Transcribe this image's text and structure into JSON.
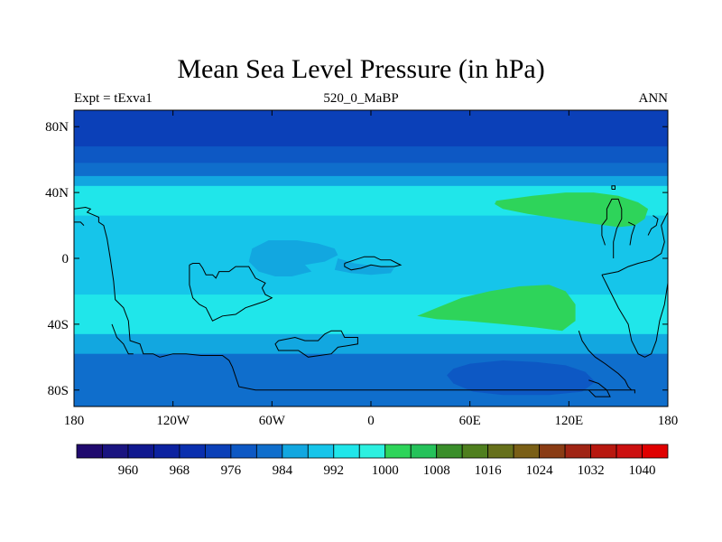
{
  "chart_data": {
    "type": "heatmap",
    "title": "Mean Sea Level Pressure (in hPa)",
    "subtitle_left": "Expt = tExva1",
    "subtitle_center": "520_0_MaBP",
    "subtitle_right": "ANN",
    "xlim": [
      -180,
      180
    ],
    "ylim": [
      -90,
      90
    ],
    "x_ticks": [
      {
        "value": -180,
        "label": "180"
      },
      {
        "value": -120,
        "label": "120W"
      },
      {
        "value": -60,
        "label": "60W"
      },
      {
        "value": 0,
        "label": "0"
      },
      {
        "value": 60,
        "label": "60E"
      },
      {
        "value": 120,
        "label": "120E"
      },
      {
        "value": 180,
        "label": "180"
      }
    ],
    "y_ticks": [
      {
        "value": 80,
        "label": "80N"
      },
      {
        "value": 40,
        "label": "40N"
      },
      {
        "value": 0,
        "label": "0"
      },
      {
        "value": -40,
        "label": "40S"
      },
      {
        "value": -80,
        "label": "80S"
      }
    ],
    "colorbar": {
      "levels": [
        956,
        960,
        964,
        968,
        972,
        976,
        980,
        984,
        988,
        992,
        996,
        1000,
        1004,
        1008,
        1012,
        1016,
        1020,
        1024,
        1028,
        1032,
        1036,
        1040,
        1044
      ],
      "colors": [
        "#200a6e",
        "#1a1480",
        "#10188f",
        "#0c22a0",
        "#0a2fae",
        "#0b40b8",
        "#0d58c4",
        "#0f6ecc",
        "#12a7e0",
        "#16c5ea",
        "#20e6ea",
        "#2cf0e0",
        "#2ed45a",
        "#25c25a",
        "#3a8e2a",
        "#4f7f1e",
        "#66701b",
        "#7a5f16",
        "#8a3c14",
        "#a02414",
        "#b8180f",
        "#cc1010",
        "#e00000"
      ],
      "labels": [
        "960",
        "968",
        "976",
        "984",
        "992",
        "1000",
        "1008",
        "1016",
        "1024",
        "1032",
        "1040"
      ],
      "label_values": [
        960,
        968,
        976,
        984,
        992,
        1000,
        1008,
        1016,
        1024,
        1032,
        1040
      ]
    },
    "zonal_bands": [
      {
        "lat_max": 90,
        "lat_min": 68,
        "value": 976
      },
      {
        "lat_max": 68,
        "lat_min": 58,
        "value": 980
      },
      {
        "lat_max": 58,
        "lat_min": 50,
        "value": 984
      },
      {
        "lat_max": 50,
        "lat_min": 44,
        "value": 988
      },
      {
        "lat_max": 44,
        "lat_min": 26,
        "value": 996
      },
      {
        "lat_max": 26,
        "lat_min": -22,
        "value": 992
      },
      {
        "lat_max": -22,
        "lat_min": -46,
        "value": 996
      },
      {
        "lat_max": -46,
        "lat_min": -58,
        "value": 988
      },
      {
        "lat_max": -58,
        "lat_min": -90,
        "value": 984
      }
    ],
    "regions": [
      {
        "name": "north-pacific-high",
        "value": 1004,
        "path": [
          [
            76,
            35
          ],
          [
            98,
            38
          ],
          [
            118,
            40
          ],
          [
            135,
            40
          ],
          [
            150,
            38
          ],
          [
            162,
            34
          ],
          [
            168,
            30
          ],
          [
            166,
            24
          ],
          [
            160,
            20
          ],
          [
            150,
            19
          ],
          [
            135,
            21
          ],
          [
            115,
            24
          ],
          [
            95,
            27
          ],
          [
            80,
            30
          ],
          [
            75,
            33
          ]
        ]
      },
      {
        "name": "south-indian-high",
        "value": 1004,
        "path": [
          [
            28,
            -35
          ],
          [
            40,
            -30
          ],
          [
            55,
            -24
          ],
          [
            72,
            -20
          ],
          [
            90,
            -17
          ],
          [
            108,
            -16
          ],
          [
            118,
            -20
          ],
          [
            124,
            -28
          ],
          [
            124,
            -38
          ],
          [
            116,
            -44
          ],
          [
            100,
            -42
          ],
          [
            80,
            -40
          ],
          [
            58,
            -38
          ],
          [
            40,
            -37
          ]
        ]
      },
      {
        "name": "tropical-low-west",
        "value": 988,
        "path": [
          [
            -72,
            6
          ],
          [
            -62,
            11
          ],
          [
            -45,
            11
          ],
          [
            -32,
            9
          ],
          [
            -22,
            6
          ],
          [
            -20,
            2
          ],
          [
            -28,
            -2
          ],
          [
            -40,
            -4
          ],
          [
            -36,
            -8
          ],
          [
            -48,
            -11
          ],
          [
            -58,
            -11
          ],
          [
            -68,
            -8
          ],
          [
            -74,
            -2
          ]
        ]
      },
      {
        "name": "tropical-low-east",
        "value": 988,
        "path": [
          [
            -20,
            0
          ],
          [
            -10,
            -3
          ],
          [
            5,
            -5
          ],
          [
            14,
            -6
          ],
          [
            12,
            -9
          ],
          [
            0,
            -10
          ],
          [
            -12,
            -9
          ],
          [
            -22,
            -7
          ]
        ]
      },
      {
        "name": "southern-ocean-low",
        "value": 980,
        "path": [
          [
            50,
            -67
          ],
          [
            60,
            -64
          ],
          [
            80,
            -62
          ],
          [
            100,
            -63
          ],
          [
            118,
            -65
          ],
          [
            130,
            -69
          ],
          [
            136,
            -75
          ],
          [
            128,
            -81
          ],
          [
            108,
            -83
          ],
          [
            80,
            -83
          ],
          [
            62,
            -81
          ],
          [
            50,
            -76
          ],
          [
            46,
            -71
          ]
        ]
      }
    ],
    "coastlines": [
      [
        [
          -180,
          30
        ],
        [
          -173,
          31
        ],
        [
          -170,
          30
        ],
        [
          -172,
          28
        ],
        [
          -165,
          25
        ],
        [
          -165,
          22
        ],
        [
          -162,
          20
        ],
        [
          -160,
          12
        ],
        [
          -158,
          0
        ],
        [
          -156,
          -14
        ],
        [
          -155,
          -25
        ],
        [
          -150,
          -30
        ],
        [
          -147,
          -38
        ],
        [
          -146,
          -50
        ],
        [
          -140,
          -52
        ],
        [
          -138,
          -58
        ],
        [
          -132,
          -58
        ],
        [
          -128,
          -60
        ],
        [
          -120,
          -58
        ],
        [
          -112,
          -58
        ],
        [
          -103,
          -59
        ],
        [
          -90,
          -59
        ],
        [
          -86,
          -62
        ],
        [
          -84,
          -66
        ],
        [
          -80,
          -78
        ],
        [
          -70,
          -80
        ],
        [
          -50,
          -80
        ],
        [
          -20,
          -80
        ],
        [
          10,
          -80
        ],
        [
          40,
          -80
        ],
        [
          80,
          -80
        ],
        [
          120,
          -80
        ],
        [
          150,
          -80
        ],
        [
          160,
          -80
        ],
        [
          160,
          -82
        ]
      ],
      [
        [
          -180,
          22
        ],
        [
          -176,
          22
        ],
        [
          -174,
          20
        ]
      ],
      [
        [
          -157,
          -40
        ],
        [
          -154,
          -48
        ],
        [
          -150,
          -52
        ],
        [
          -147,
          -58
        ],
        [
          -144,
          -58
        ]
      ],
      [
        [
          -110,
          -4
        ],
        [
          -108,
          -3
        ],
        [
          -104,
          -3
        ],
        [
          -102,
          -6
        ],
        [
          -100,
          -10
        ],
        [
          -96,
          -10
        ],
        [
          -94,
          -12
        ],
        [
          -92,
          -8
        ],
        [
          -86,
          -8
        ],
        [
          -82,
          -5
        ],
        [
          -74,
          -5
        ],
        [
          -70,
          -12
        ],
        [
          -64,
          -15
        ],
        [
          -66,
          -18
        ],
        [
          -64,
          -22
        ],
        [
          -60,
          -24
        ],
        [
          -64,
          -26
        ],
        [
          -70,
          -28
        ],
        [
          -76,
          -30
        ],
        [
          -82,
          -34
        ],
        [
          -90,
          -35
        ],
        [
          -96,
          -38
        ],
        [
          -98,
          -34
        ],
        [
          -100,
          -30
        ],
        [
          -104,
          -28
        ],
        [
          -108,
          -24
        ],
        [
          -110,
          -16
        ],
        [
          -110,
          -4
        ]
      ],
      [
        [
          -56,
          -50
        ],
        [
          -46,
          -48
        ],
        [
          -40,
          -50
        ],
        [
          -32,
          -50
        ],
        [
          -28,
          -46
        ],
        [
          -24,
          -44
        ],
        [
          -18,
          -44
        ],
        [
          -16,
          -48
        ],
        [
          -8,
          -48
        ],
        [
          -8,
          -52
        ],
        [
          -20,
          -54
        ],
        [
          -24,
          -58
        ],
        [
          -38,
          -60
        ],
        [
          -44,
          -56
        ],
        [
          -56,
          -56
        ],
        [
          -58,
          -52
        ],
        [
          -56,
          -50
        ]
      ],
      [
        [
          -16,
          -3
        ],
        [
          -10,
          -1
        ],
        [
          -4,
          1
        ],
        [
          2,
          1
        ],
        [
          6,
          -1
        ],
        [
          12,
          -1
        ],
        [
          16,
          -3
        ],
        [
          18,
          -4
        ],
        [
          14,
          -5
        ],
        [
          6,
          -5
        ],
        [
          0,
          -4
        ],
        [
          -6,
          -6
        ],
        [
          -12,
          -7
        ],
        [
          -16,
          -5
        ],
        [
          -16,
          -3
        ]
      ],
      [
        [
          140,
          -10
        ],
        [
          145,
          -20
        ],
        [
          150,
          -30
        ],
        [
          156,
          -40
        ],
        [
          158,
          -50
        ],
        [
          162,
          -58
        ],
        [
          166,
          -60
        ],
        [
          170,
          -58
        ],
        [
          173,
          -50
        ],
        [
          175,
          -38
        ],
        [
          178,
          -28
        ],
        [
          180,
          -15
        ]
      ],
      [
        [
          140,
          -10
        ],
        [
          150,
          -8
        ],
        [
          156,
          -5
        ],
        [
          162,
          -3
        ],
        [
          170,
          -1
        ],
        [
          176,
          3
        ],
        [
          178,
          10
        ],
        [
          176,
          20
        ],
        [
          180,
          28
        ],
        [
          180,
          32
        ]
      ],
      [
        [
          147,
          0
        ],
        [
          147,
          10
        ],
        [
          149,
          18
        ],
        [
          152,
          24
        ],
        [
          152,
          30
        ],
        [
          150,
          36
        ],
        [
          146,
          36
        ],
        [
          143,
          30
        ],
        [
          143,
          24
        ],
        [
          140,
          20
        ],
        [
          140,
          14
        ],
        [
          142,
          8
        ]
      ],
      [
        [
          157,
          8
        ],
        [
          158,
          14
        ],
        [
          160,
          20
        ],
        [
          156,
          22
        ]
      ],
      [
        [
          168,
          14
        ],
        [
          170,
          18
        ],
        [
          173,
          20
        ],
        [
          174,
          24
        ],
        [
          171,
          26
        ]
      ],
      [
        [
          126,
          -44
        ],
        [
          128,
          -50
        ],
        [
          132,
          -56
        ],
        [
          136,
          -60
        ],
        [
          142,
          -64
        ],
        [
          150,
          -70
        ],
        [
          154,
          -74
        ],
        [
          156,
          -78
        ],
        [
          158,
          -80
        ]
      ],
      [
        [
          132,
          -74
        ],
        [
          138,
          -76
        ],
        [
          143,
          -80
        ],
        [
          145,
          -84
        ],
        [
          136,
          -84
        ],
        [
          132,
          -80
        ]
      ],
      [
        [
          146,
          42
        ],
        [
          148,
          42
        ],
        [
          148,
          44
        ],
        [
          146,
          44
        ],
        [
          146,
          42
        ]
      ]
    ]
  }
}
